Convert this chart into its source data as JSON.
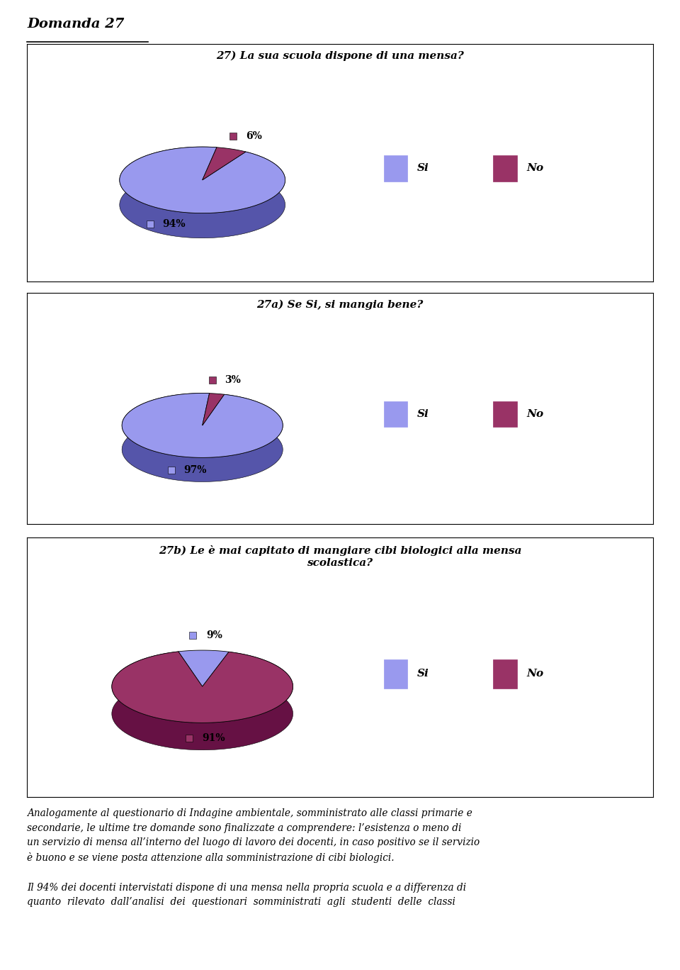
{
  "title_main": "Domanda 27",
  "charts": [
    {
      "title": "27) La sua scuola dispone di una mensa?",
      "values": [
        94,
        6
      ],
      "labels": [
        "94%",
        "6%"
      ],
      "legend_labels": [
        "Si",
        "No"
      ],
      "colors_top": [
        "#9999EE",
        "#993366"
      ],
      "colors_side": [
        "#5555AA",
        "#661144"
      ],
      "startangle": 80,
      "title_lines": 1
    },
    {
      "title": "27a) Se Si, si mangia bene?",
      "values": [
        97,
        3
      ],
      "labels": [
        "97%",
        "3%"
      ],
      "legend_labels": [
        "Si",
        "No"
      ],
      "colors_top": [
        "#9999EE",
        "#993366"
      ],
      "colors_side": [
        "#5555AA",
        "#661144"
      ],
      "startangle": 85,
      "title_lines": 1
    },
    {
      "title": "27b) Le è mai capitato di mangiare cibi biologici alla mensa\nscolastica?",
      "values": [
        9,
        91
      ],
      "labels": [
        "9%",
        "91%"
      ],
      "legend_labels": [
        "Si",
        "No"
      ],
      "colors_top": [
        "#9999EE",
        "#993366"
      ],
      "colors_side": [
        "#5555AA",
        "#661144"
      ],
      "startangle": 73,
      "title_lines": 2
    }
  ],
  "paragraph_text": "Analogamente al questionario di Indagine ambientale, somministrato alle classi primarie e\nsecondarie, le ultime tre domande sono finalizzate a comprendere: l’esistenza o meno di\nun servizio di mensa all’interno del luogo di lavoro dei docenti, in caso positivo se il servizio\nè buono e se viene posta attenzione alla somministrazione di cibi biologici.\n\nIl 94% dei docenti intervistati dispone di una mensa nella propria scuola e a differenza di\nquanto  rilevato  dall’analisi  dei  questionari  somministrati  agli  studenti  delle  classi"
}
